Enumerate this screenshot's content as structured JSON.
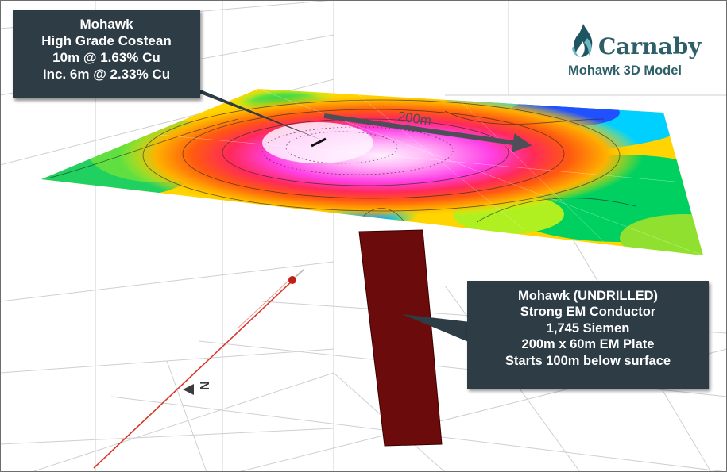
{
  "brand": {
    "name": "Carnaby",
    "subtitle": "Mohawk 3D Model",
    "colors": {
      "text": "#2e5f68",
      "flame_dark": "#1f5560",
      "flame_light": "#6fb6bf"
    }
  },
  "callouts": {
    "costean": {
      "lines": [
        "Mohawk",
        "High Grade Costean",
        "10m @ 1.63% Cu",
        "Inc. 6m @ 2.33% Cu"
      ],
      "bg": "#2d3c45"
    },
    "em_conductor": {
      "lines": [
        "Mohawk (UNDRILLED)",
        "Strong EM Conductor",
        "1,745 Siemen",
        "200m x 60m EM Plate",
        "Starts 100m below surface"
      ],
      "bg": "#2d3c45"
    }
  },
  "scale_bar": {
    "label": "200m"
  },
  "north_arrow": {
    "label": "N"
  },
  "em_plate": {
    "color": "#6b0b0b"
  },
  "drillhole": {
    "color": "#d9362b"
  },
  "surface_map": {
    "description_colors": [
      "#ff00ff",
      "#ff3a3a",
      "#ff9a00",
      "#ffff00",
      "#00e040",
      "#00d0ff",
      "#2050ff"
    ]
  }
}
